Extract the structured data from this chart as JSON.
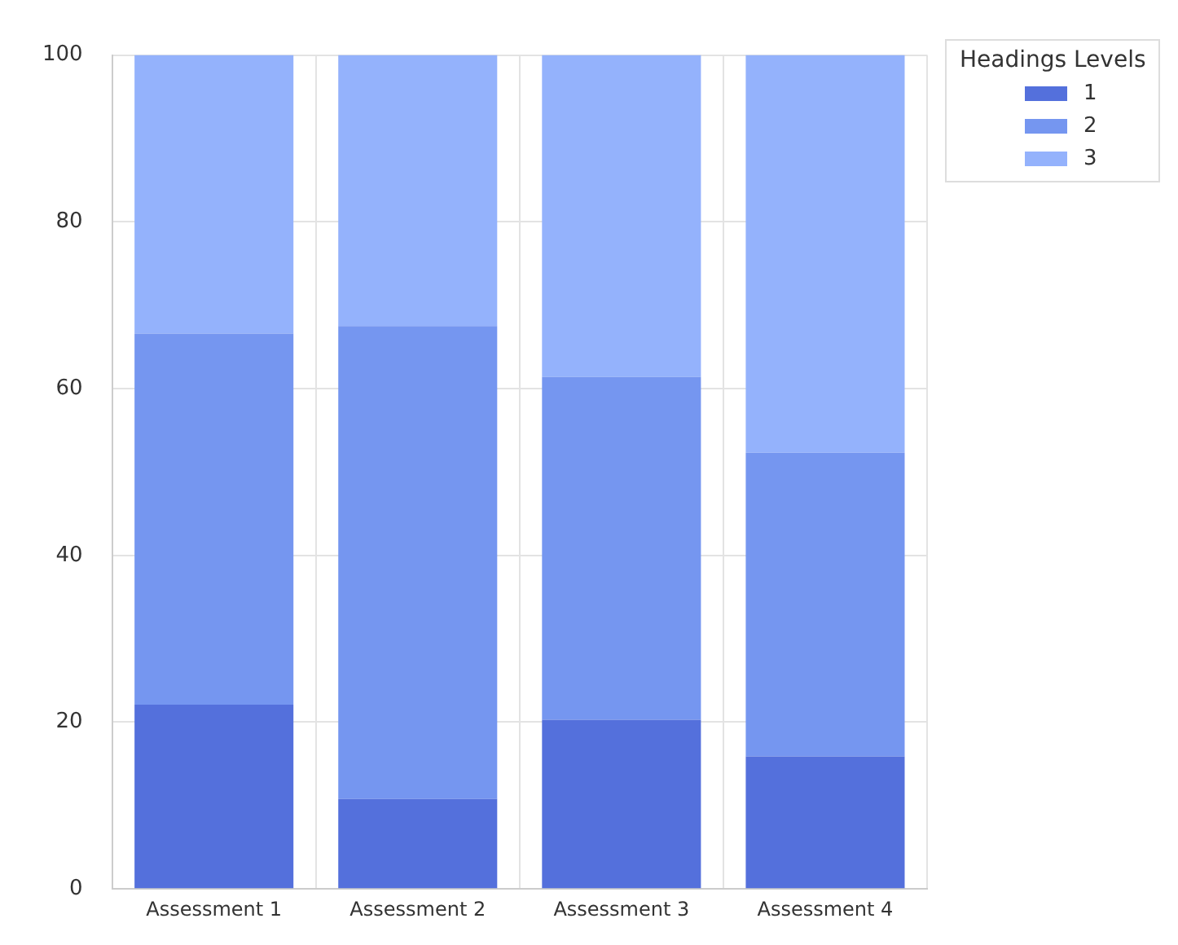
{
  "chart_data": {
    "type": "bar",
    "stacked": true,
    "legend_title": "Headings Levels",
    "legend": "top right",
    "grid": true,
    "categories": [
      "Assessment 1",
      "Assessment 2",
      "Assessment 3",
      "Assessment 4"
    ],
    "series": [
      {
        "name": "1",
        "color": "#5470dc",
        "values": [
          22.1,
          10.8,
          20.3,
          15.9
        ]
      },
      {
        "name": "2",
        "color": "#7596f0",
        "values": [
          44.5,
          56.7,
          41.1,
          36.4
        ]
      },
      {
        "name": "3",
        "color": "#94b2fc",
        "values": [
          33.4,
          32.5,
          38.6,
          47.7
        ]
      }
    ],
    "ylim": [
      0,
      100
    ],
    "yticks": [
      0,
      20,
      40,
      60,
      80,
      100
    ]
  }
}
